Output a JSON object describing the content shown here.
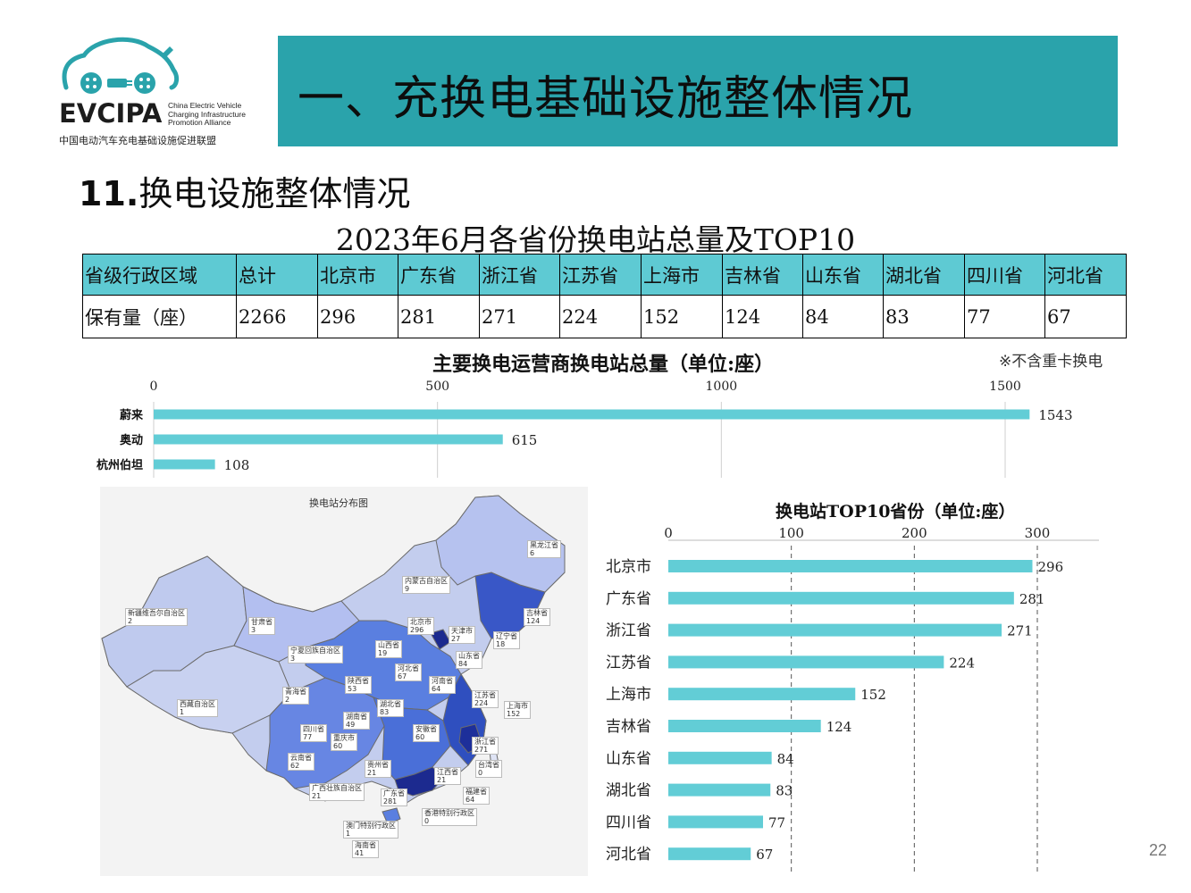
{
  "logo": {
    "brand": "EVCIPA",
    "english": "China Electric Vehicle\nCharging Infrastructure\nPromotion Alliance",
    "chinese": "中国电动汽车充电基础设施促进联盟"
  },
  "banner": {
    "title": "一、充换电基础设施整体情况",
    "color": "#2aa3ab"
  },
  "section": {
    "number": "11.",
    "title": "换电设施整体情况"
  },
  "table_title": "2023年6月各省份换电站总量及TOP10",
  "table": {
    "header": [
      "省级行政区域",
      "总计",
      "北京市",
      "广东省",
      "浙江省",
      "江苏省",
      "上海市",
      "吉林省",
      "山东省",
      "湖北省",
      "四川省",
      "河北省"
    ],
    "row": [
      "保有量（座）",
      "2266",
      "296",
      "281",
      "271",
      "224",
      "152",
      "124",
      "84",
      "83",
      "77",
      "67"
    ]
  },
  "operator_chart": {
    "title": "主要换电运营商换电站总量（单位:座）",
    "note": "※不含重卡换电"
  },
  "map": {
    "title": "换电站分布图",
    "labels": [
      {
        "name": "黑龙江省",
        "value": "6"
      },
      {
        "name": "内蒙古自治区",
        "value": "9"
      },
      {
        "name": "吉林省",
        "value": "124"
      },
      {
        "name": "新疆维吾尔自治区",
        "value": "2"
      },
      {
        "name": "甘肃省",
        "value": "3"
      },
      {
        "name": "北京市",
        "value": "296"
      },
      {
        "name": "天津市",
        "value": "27"
      },
      {
        "name": "辽宁省",
        "value": "18"
      },
      {
        "name": "宁夏回族自治区",
        "value": "3"
      },
      {
        "name": "山西省",
        "value": "19"
      },
      {
        "name": "山东省",
        "value": "84"
      },
      {
        "name": "河北省",
        "value": "67"
      },
      {
        "name": "河南省",
        "value": "64"
      },
      {
        "name": "陕西省",
        "value": "53"
      },
      {
        "name": "青海省",
        "value": "2"
      },
      {
        "name": "江苏省",
        "value": "224"
      },
      {
        "name": "上海市",
        "value": "152"
      },
      {
        "name": "西藏自治区",
        "value": "1"
      },
      {
        "name": "湖北省",
        "value": "83"
      },
      {
        "name": "湖南省",
        "value": "49"
      },
      {
        "name": "四川省",
        "value": "77"
      },
      {
        "name": "重庆市",
        "value": "60"
      },
      {
        "name": "安徽省",
        "value": "60"
      },
      {
        "name": "浙江省",
        "value": "271"
      },
      {
        "name": "云南省",
        "value": "62"
      },
      {
        "name": "贵州省",
        "value": "21"
      },
      {
        "name": "江西省",
        "value": "21"
      },
      {
        "name": "台湾省",
        "value": "0"
      },
      {
        "name": "广西壮族自治区",
        "value": "21"
      },
      {
        "name": "广东省",
        "value": "281"
      },
      {
        "name": "福建省",
        "value": "64"
      },
      {
        "name": "香港特别行政区",
        "value": "0"
      },
      {
        "name": "澳门特别行政区",
        "value": "1"
      },
      {
        "name": "海南省",
        "value": "41"
      }
    ]
  },
  "top10_chart": {
    "title": "换电站TOP10省份（单位:座）"
  },
  "page_number": "22",
  "chart_data": [
    {
      "type": "bar",
      "orientation": "horizontal",
      "title": "主要换电运营商换电站总量（单位:座）",
      "categories": [
        "蔚来",
        "奥动",
        "杭州伯坦"
      ],
      "values": [
        1543,
        615,
        108
      ],
      "xlim": [
        0,
        1500
      ],
      "xticks": [
        "0",
        "500",
        "1000",
        "1500"
      ],
      "grid": true,
      "color": "#62cdd6"
    },
    {
      "type": "bar",
      "orientation": "horizontal",
      "title": "换电站TOP10省份（单位:座）",
      "categories": [
        "北京市",
        "广东省",
        "浙江省",
        "江苏省",
        "上海市",
        "吉林省",
        "山东省",
        "湖北省",
        "四川省",
        "河北省"
      ],
      "values": [
        296,
        281,
        271,
        224,
        152,
        124,
        84,
        83,
        77,
        67
      ],
      "xlim": [
        0,
        300
      ],
      "xticks": [
        "0",
        "100",
        "200",
        "300"
      ],
      "grid": true,
      "color": "#62cdd6"
    }
  ]
}
